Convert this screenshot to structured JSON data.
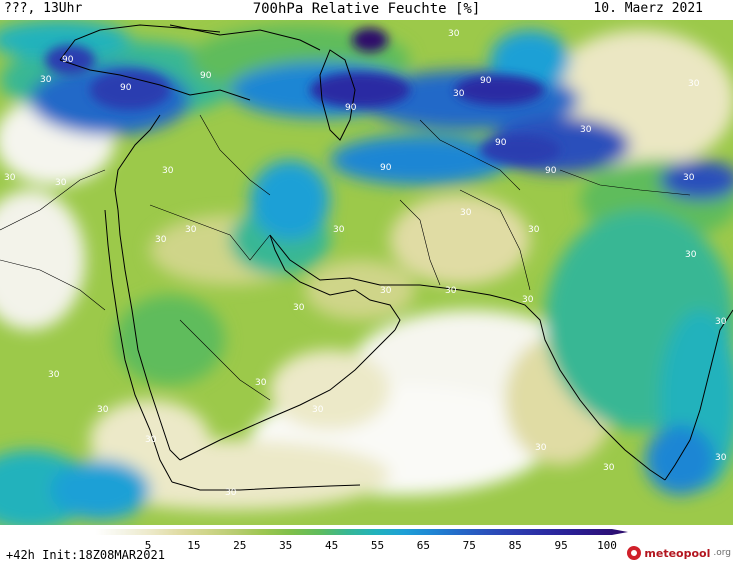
{
  "header": {
    "left": "???, 13Uhr",
    "title": "700hPa Relative Feuchte [%]",
    "date": "10. Maerz 2021"
  },
  "colors": {
    "map_background": "#9cc94a",
    "coastline": "#000000",
    "label": "#ffffff"
  },
  "legend": {
    "ticks": [
      "5",
      "15",
      "25",
      "35",
      "45",
      "55",
      "65",
      "75",
      "85",
      "95",
      "100"
    ],
    "stops": [
      {
        "value": 5,
        "color": "#ffffff"
      },
      {
        "value": 10,
        "color": "#f4f4e6"
      },
      {
        "value": 15,
        "color": "#ece9c8"
      },
      {
        "value": 20,
        "color": "#e0dca4"
      },
      {
        "value": 25,
        "color": "#cfd589"
      },
      {
        "value": 30,
        "color": "#b8cc70"
      },
      {
        "value": 35,
        "color": "#9cc650"
      },
      {
        "value": 40,
        "color": "#7ebf4a"
      },
      {
        "value": 45,
        "color": "#5fbc5c"
      },
      {
        "value": 50,
        "color": "#37b794"
      },
      {
        "value": 55,
        "color": "#21b2bc"
      },
      {
        "value": 60,
        "color": "#1ea0d6"
      },
      {
        "value": 65,
        "color": "#1f86d4"
      },
      {
        "value": 70,
        "color": "#2469c8"
      },
      {
        "value": 75,
        "color": "#2a50bb"
      },
      {
        "value": 80,
        "color": "#2c3db0"
      },
      {
        "value": 85,
        "color": "#2b2ca3"
      },
      {
        "value": 90,
        "color": "#2a1f94"
      },
      {
        "value": 95,
        "color": "#2c1480"
      },
      {
        "value": 100,
        "color": "#2d0c6a"
      }
    ]
  },
  "contour_labels": {
    "c30": "30",
    "c90": "90"
  },
  "footer": {
    "left": "+42h Init:18Z08MAR2021",
    "logo_name": "meteopool",
    "logo_tld": ".org"
  }
}
